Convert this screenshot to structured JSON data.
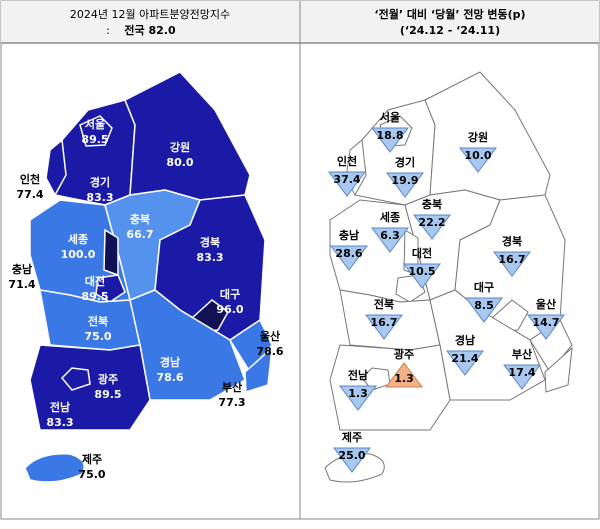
{
  "left": {
    "title": "2024년 12월 아파트분양전망지수",
    "subtitle_prefix": ":",
    "subtitle": "전국 82.0",
    "regions": [
      {
        "name": "서울",
        "value": "89.5",
        "color": "#1a1aa6",
        "label_color": "#ffffff"
      },
      {
        "name": "강원",
        "value": "80.0",
        "color": "#1a1aa6",
        "label_color": "#ffffff"
      },
      {
        "name": "인천",
        "value": "77.4",
        "color": "#1a1aa6",
        "label_color": "#000000"
      },
      {
        "name": "경기",
        "value": "83.3",
        "color": "#1a1aa6",
        "label_color": "#ffffff"
      },
      {
        "name": "충북",
        "value": "66.7",
        "color": "#5592ee",
        "label_color": "#ffffff"
      },
      {
        "name": "세종",
        "value": "100.0",
        "color": "#111156",
        "label_color": "#ffffff"
      },
      {
        "name": "충남",
        "value": "71.4",
        "color": "#3a78e6",
        "label_color": "#000000"
      },
      {
        "name": "대전",
        "value": "89.5",
        "color": "#1a1aa6",
        "label_color": "#ffffff"
      },
      {
        "name": "경북",
        "value": "83.3",
        "color": "#1a1aa6",
        "label_color": "#ffffff"
      },
      {
        "name": "대구",
        "value": "96.0",
        "color": "#111156",
        "label_color": "#ffffff"
      },
      {
        "name": "전북",
        "value": "75.0",
        "color": "#3a78e6",
        "label_color": "#ffffff"
      },
      {
        "name": "울산",
        "value": "78.6",
        "color": "#3a78e6",
        "label_color": "#000000"
      },
      {
        "name": "경남",
        "value": "78.6",
        "color": "#3a78e6",
        "label_color": "#ffffff"
      },
      {
        "name": "부산",
        "value": "77.3",
        "color": "#3a78e6",
        "label_color": "#000000"
      },
      {
        "name": "광주",
        "value": "89.5",
        "color": "#1a1aa6",
        "label_color": "#ffffff"
      },
      {
        "name": "전남",
        "value": "83.3",
        "color": "#1a1aa6",
        "label_color": "#ffffff"
      },
      {
        "name": "제주",
        "value": "75.0",
        "color": "#3a78e6",
        "label_color": "#000000"
      }
    ]
  },
  "right": {
    "title": "‘전월’ 대비 ‘당월’ 전망 변동(p)",
    "subtitle": "(‘24.12  -  ‘24.11)",
    "regions": [
      {
        "name": "서울",
        "value": "18.8",
        "trend": "down"
      },
      {
        "name": "강원",
        "value": "10.0",
        "trend": "down"
      },
      {
        "name": "인천",
        "value": "37.4",
        "trend": "down"
      },
      {
        "name": "경기",
        "value": "19.9",
        "trend": "down"
      },
      {
        "name": "충북",
        "value": "22.2",
        "trend": "down"
      },
      {
        "name": "세종",
        "value": "6.3",
        "trend": "down"
      },
      {
        "name": "충남",
        "value": "28.6",
        "trend": "down"
      },
      {
        "name": "대전",
        "value": "10.5",
        "trend": "down"
      },
      {
        "name": "경북",
        "value": "16.7",
        "trend": "down"
      },
      {
        "name": "대구",
        "value": "8.5",
        "trend": "down"
      },
      {
        "name": "전북",
        "value": "16.7",
        "trend": "down"
      },
      {
        "name": "울산",
        "value": "14.7",
        "trend": "down"
      },
      {
        "name": "경남",
        "value": "21.4",
        "trend": "down"
      },
      {
        "name": "부산",
        "value": "17.4",
        "trend": "down"
      },
      {
        "name": "광주",
        "value": "1.3",
        "trend": "up"
      },
      {
        "name": "전남",
        "value": "1.3",
        "trend": "down"
      },
      {
        "name": "제주",
        "value": "25.0",
        "trend": "down"
      }
    ]
  }
}
